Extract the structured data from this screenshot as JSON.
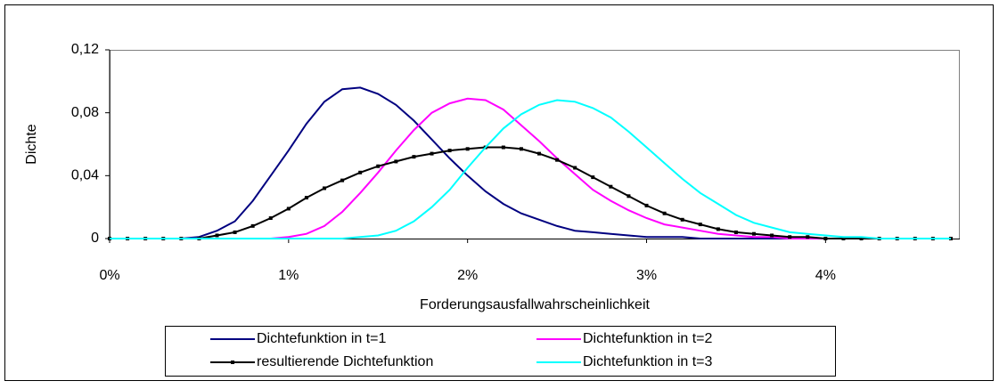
{
  "chart_data": {
    "type": "line",
    "x_label": "Forderungsausfallwahrscheinlichkeit",
    "y_label": "Dichte",
    "x": [
      0,
      0.1,
      0.2,
      0.3,
      0.4,
      0.5,
      0.6,
      0.7,
      0.8,
      0.9,
      1.0,
      1.1,
      1.2,
      1.3,
      1.4,
      1.5,
      1.6,
      1.7,
      1.8,
      1.9,
      2.0,
      2.1,
      2.2,
      2.3,
      2.4,
      2.5,
      2.6,
      2.7,
      2.8,
      2.9,
      3.0,
      3.1,
      3.2,
      3.3,
      3.4,
      3.5,
      3.6,
      3.7,
      3.8,
      3.9,
      4.0,
      4.1,
      4.2,
      4.3,
      4.4,
      4.5,
      4.6,
      4.7
    ],
    "series": [
      {
        "name": "Dichtefunktion in t=1",
        "color": "#000080",
        "values": [
          0,
          0,
          0,
          0,
          0,
          0.001,
          0.005,
          0.011,
          0.024,
          0.04,
          0.056,
          0.073,
          0.087,
          0.095,
          0.096,
          0.092,
          0.085,
          0.075,
          0.063,
          0.051,
          0.04,
          0.03,
          0.022,
          0.016,
          0.012,
          0.008,
          0.005,
          0.004,
          0.003,
          0.002,
          0.001,
          0.001,
          0.001,
          0,
          0,
          0,
          0,
          0,
          0,
          0,
          0,
          0,
          0,
          0,
          0,
          0,
          0,
          0
        ]
      },
      {
        "name": "Dichtefunktion in t=2",
        "color": "#ff00ff",
        "values": [
          0,
          0,
          0,
          0,
          0,
          0,
          0,
          0,
          0,
          0,
          0.001,
          0.003,
          0.008,
          0.017,
          0.029,
          0.042,
          0.056,
          0.069,
          0.08,
          0.086,
          0.089,
          0.088,
          0.082,
          0.072,
          0.062,
          0.051,
          0.041,
          0.031,
          0.024,
          0.018,
          0.013,
          0.009,
          0.007,
          0.005,
          0.003,
          0.002,
          0.001,
          0.001,
          0,
          0,
          0,
          0,
          0,
          0,
          0,
          0,
          0,
          0
        ]
      },
      {
        "name": "resultierende Dichtefunktion",
        "color": "#000000",
        "marker": "square",
        "values": [
          0,
          0,
          0,
          0,
          0,
          0,
          0.002,
          0.004,
          0.008,
          0.013,
          0.019,
          0.026,
          0.032,
          0.037,
          0.042,
          0.046,
          0.049,
          0.052,
          0.054,
          0.056,
          0.057,
          0.058,
          0.058,
          0.057,
          0.054,
          0.05,
          0.045,
          0.039,
          0.033,
          0.027,
          0.021,
          0.016,
          0.012,
          0.009,
          0.006,
          0.004,
          0.003,
          0.002,
          0.001,
          0.001,
          0,
          0,
          0,
          0,
          0,
          0,
          0,
          0
        ]
      },
      {
        "name": "Dichtefunktion in t=3",
        "color": "#00ffff",
        "values": [
          0,
          0,
          0,
          0,
          0,
          0,
          0,
          0,
          0,
          0,
          0,
          0,
          0,
          0,
          0.001,
          0.002,
          0.005,
          0.011,
          0.02,
          0.031,
          0.045,
          0.058,
          0.07,
          0.079,
          0.085,
          0.088,
          0.087,
          0.083,
          0.077,
          0.068,
          0.058,
          0.048,
          0.038,
          0.029,
          0.022,
          0.015,
          0.01,
          0.007,
          0.004,
          0.003,
          0.002,
          0.001,
          0.001,
          0,
          0,
          0,
          0,
          0
        ]
      }
    ],
    "xlim": [
      0,
      4.75
    ],
    "xticks": [
      {
        "value": 0,
        "label": "0%"
      },
      {
        "value": 1,
        "label": "1%"
      },
      {
        "value": 2,
        "label": "2%"
      },
      {
        "value": 3,
        "label": "3%"
      },
      {
        "value": 4,
        "label": "4%"
      }
    ],
    "ylim": [
      0,
      0.12
    ],
    "yticks": [
      0,
      {
        "value": 0.04,
        "label": "0,04"
      },
      {
        "value": 0.08,
        "label": "0,08"
      },
      {
        "value": 0.12,
        "label": "0,12"
      }
    ],
    "grid": false
  }
}
